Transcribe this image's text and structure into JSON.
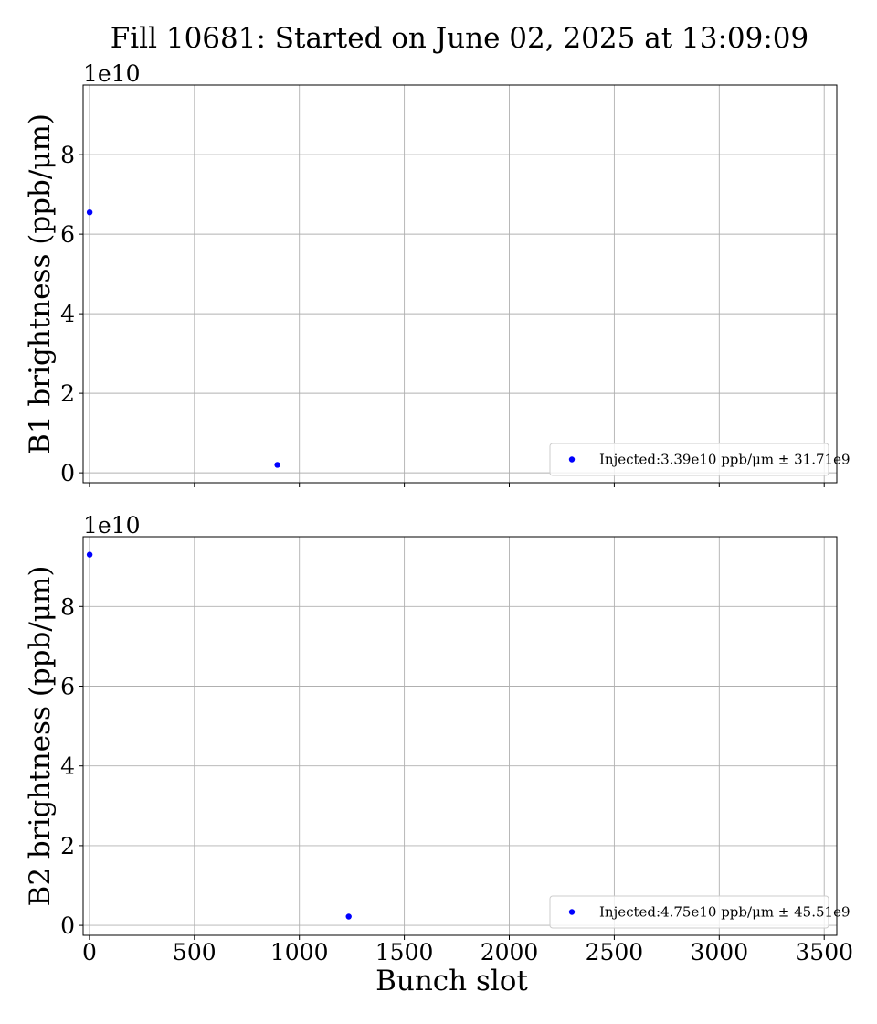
{
  "figure": {
    "title": "Fill 10681: Started on June 02, 2025 at 13:09:09"
  },
  "chart_data": [
    {
      "type": "scatter",
      "panel": "top",
      "ylabel": "B1 brightness (ppb/μm)",
      "xlabel": "",
      "y_offset_label": "1e10",
      "xlim": [
        -30,
        3560
      ],
      "ylim": [
        -2500000000.0,
        97500000000.0
      ],
      "xticks": [
        0,
        500,
        1000,
        1500,
        2000,
        2500,
        3000,
        3500
      ],
      "xtick_labels_visible": false,
      "yticks": [
        0,
        2,
        4,
        6,
        8
      ],
      "ytick_scale": 10000000000.0,
      "grid": true,
      "legend_placement": "lower right",
      "series": [
        {
          "name": "Injected:3.39e10 ppb/μm ± 31.71e9",
          "color": "#0000ff",
          "x": [
            1,
            895
          ],
          "y": [
            65500000000.0,
            2000000000.0
          ]
        }
      ]
    },
    {
      "type": "scatter",
      "panel": "bottom",
      "ylabel": "B2 brightness (ppb/μm)",
      "xlabel": "Bunch slot",
      "y_offset_label": "1e10",
      "xlim": [
        -30,
        3560
      ],
      "ylim": [
        -2500000000.0,
        97500000000.0
      ],
      "xticks": [
        0,
        500,
        1000,
        1500,
        2000,
        2500,
        3000,
        3500
      ],
      "xtick_labels_visible": true,
      "yticks": [
        0,
        2,
        4,
        6,
        8
      ],
      "ytick_scale": 10000000000.0,
      "grid": true,
      "legend_placement": "lower right",
      "series": [
        {
          "name": "Injected:4.75e10 ppb/μm ± 45.51e9",
          "color": "#0000ff",
          "x": [
            1,
            1235
          ],
          "y": [
            93000000000.0,
            2200000000.0
          ]
        }
      ]
    }
  ]
}
